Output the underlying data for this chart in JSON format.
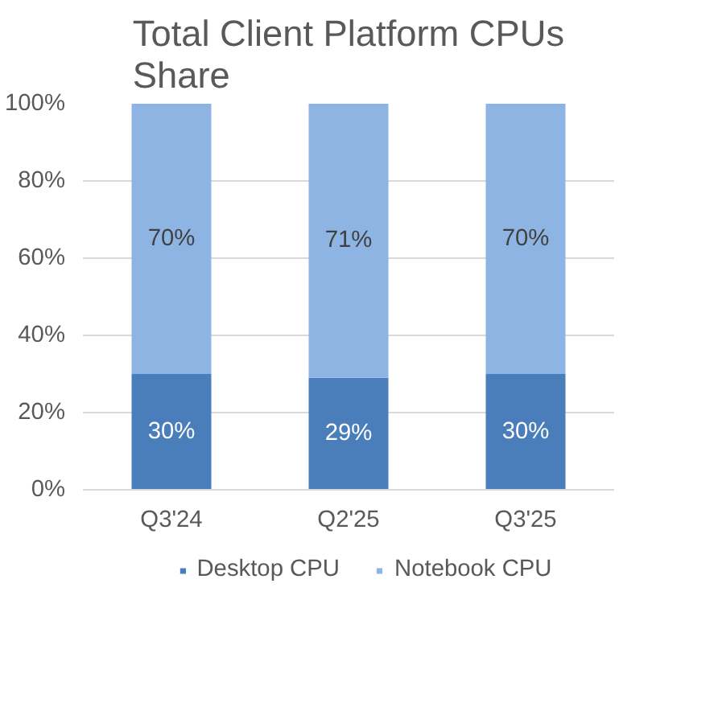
{
  "chart_data": {
    "type": "bar",
    "stacked": true,
    "title": "Total Client Platform CPUs Share",
    "categories": [
      "Q3'24",
      "Q2'25",
      "Q3'25"
    ],
    "series": [
      {
        "name": "Desktop CPU",
        "color": "#4a7ebb",
        "values": [
          30,
          29,
          30
        ],
        "value_labels": [
          "30%",
          "29%",
          "30%"
        ]
      },
      {
        "name": "Notebook CPU",
        "color": "#8eb4e3",
        "values": [
          70,
          71,
          70
        ],
        "value_labels": [
          "70%",
          "71%",
          "70%"
        ]
      }
    ],
    "ylim": [
      0,
      100
    ],
    "yticks": [
      {
        "value": 0,
        "label": "0%"
      },
      {
        "value": 20,
        "label": "20%"
      },
      {
        "value": 40,
        "label": "40%"
      },
      {
        "value": 60,
        "label": "60%"
      },
      {
        "value": 80,
        "label": "80%"
      },
      {
        "value": 100,
        "label": "100%"
      }
    ],
    "grid": "y",
    "legend": "bottom"
  }
}
